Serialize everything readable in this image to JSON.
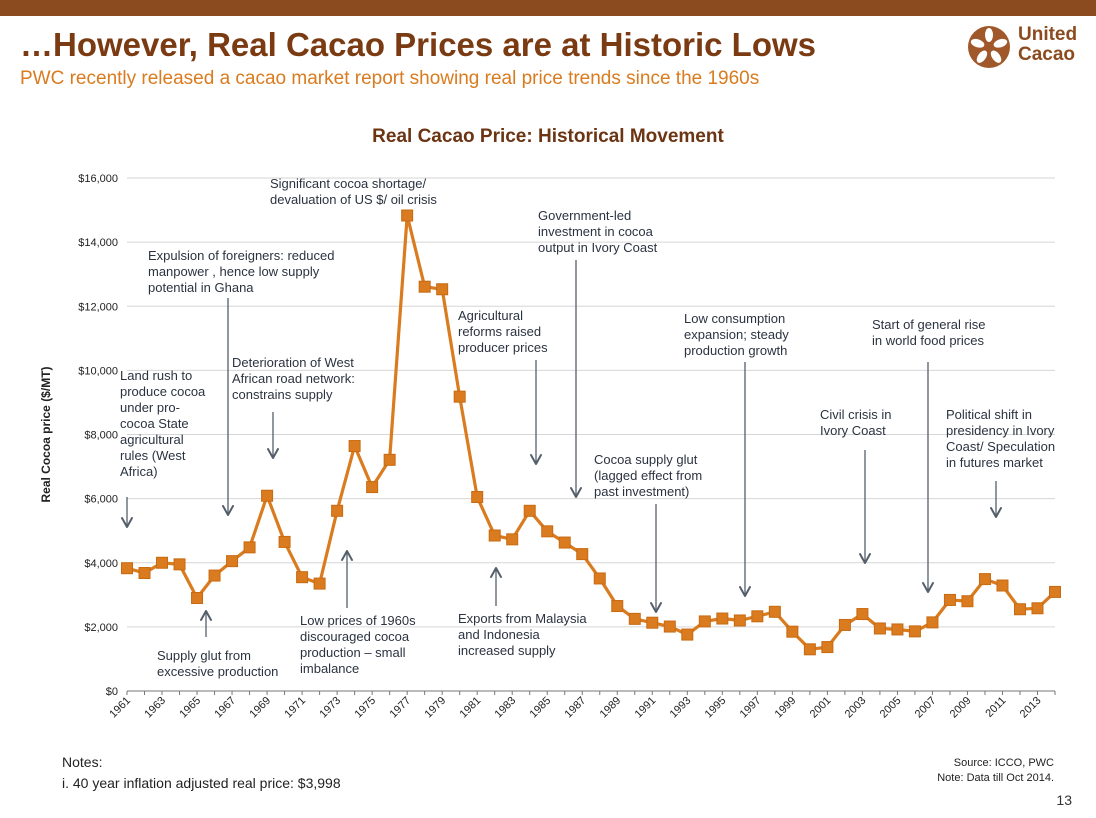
{
  "header": {
    "title": "…However, Real Cacao Prices are at Historic Lows",
    "subtitle": "PWC recently released a cacao market report showing real price trends since the 1960s"
  },
  "logo": {
    "line1": "United",
    "line2": "Cacao"
  },
  "colors": {
    "topbar": "#8b4b1f",
    "title": "#7a3a12",
    "subtitle": "#d97b1e",
    "series": "#d97b1e",
    "arrow": "#555f6b"
  },
  "chart_data": {
    "type": "line",
    "title": "Real Cacao Price: Historical Movement",
    "ylabel": "Real Cocoa price ($/MT)",
    "ylim": [
      0,
      16000
    ],
    "yticks": [
      "$0",
      "$2,000",
      "$4,000",
      "$6,000",
      "$8,000",
      "$10,000",
      "$12,000",
      "$14,000",
      "$16,000"
    ],
    "xticks": [
      "1961",
      "1963",
      "1965",
      "1967",
      "1969",
      "1971",
      "1973",
      "1975",
      "1977",
      "1979",
      "1981",
      "1983",
      "1985",
      "1987",
      "1989",
      "1991",
      "1993",
      "1995",
      "1997",
      "1999",
      "2001",
      "2003",
      "2005",
      "2007",
      "2009",
      "2011",
      "2013"
    ],
    "grid": true,
    "x": [
      1961,
      1962,
      1963,
      1964,
      1965,
      1966,
      1967,
      1968,
      1969,
      1970,
      1971,
      1972,
      1973,
      1974,
      1975,
      1976,
      1977,
      1978,
      1979,
      1980,
      1981,
      1982,
      1983,
      1984,
      1985,
      1986,
      1987,
      1988,
      1989,
      1990,
      1991,
      1992,
      1993,
      1994,
      1995,
      1996,
      1997,
      1998,
      1999,
      2000,
      2001,
      2002,
      2003,
      2004,
      2005,
      2006,
      2007,
      2008,
      2009,
      2010,
      2011,
      2012,
      2013,
      2014
    ],
    "values": [
      3830,
      3680,
      4000,
      3950,
      2900,
      3600,
      4050,
      4480,
      6090,
      4650,
      3550,
      3350,
      5620,
      7640,
      6360,
      7210,
      14830,
      12610,
      12530,
      9180,
      6050,
      4850,
      4730,
      5620,
      4980,
      4630,
      4270,
      3510,
      2650,
      2250,
      2130,
      2010,
      1760,
      2170,
      2260,
      2200,
      2330,
      2470,
      1850,
      1300,
      1370,
      2060,
      2400,
      1950,
      1920,
      1860,
      2140,
      2840,
      2800,
      3490,
      3290,
      2550,
      2580,
      3090
    ],
    "annotations": [
      {
        "text": [
          "Land rush to",
          "produce cocoa",
          "under pro-",
          "cocoa State",
          "agricultural",
          "rules (West",
          "Africa)"
        ]
      },
      {
        "text": [
          "Expulsion of foreigners: reduced",
          "manpower , hence low supply",
          "potential in Ghana"
        ]
      },
      {
        "text": [
          "Deterioration of West",
          "African road network:",
          "constrains supply"
        ]
      },
      {
        "text": [
          "Significant cocoa shortage/",
          "devaluation of US $/ oil crisis"
        ]
      },
      {
        "text": [
          "Agricultural",
          "reforms raised",
          "producer prices"
        ]
      },
      {
        "text": [
          "Government-led",
          "investment in cocoa",
          "output in Ivory Coast"
        ]
      },
      {
        "text": [
          "Cocoa supply glut",
          "(lagged effect from",
          "past investment)"
        ]
      },
      {
        "text": [
          "Low consumption",
          "expansion; steady",
          "production growth"
        ]
      },
      {
        "text": [
          "Start of general rise",
          "in world food prices"
        ]
      },
      {
        "text": [
          "Civil crisis in",
          "Ivory Coast"
        ]
      },
      {
        "text": [
          "Political shift in",
          "presidency in Ivory",
          "Coast/ Speculation",
          "in futures market"
        ]
      },
      {
        "text": [
          "Supply glut from",
          "excessive production"
        ]
      },
      {
        "text": [
          "Low prices of 1960s",
          "discouraged cocoa",
          "production – small",
          "imbalance"
        ]
      },
      {
        "text": [
          "Exports from Malaysia",
          "and Indonesia",
          "increased supply"
        ]
      }
    ]
  },
  "notes": {
    "heading": "Notes:",
    "items": [
      "i.   40 year inflation adjusted real price: $3,998"
    ]
  },
  "source": {
    "line1": "Source: ICCO, PWC",
    "line2": "Note: Data till Oct 2014."
  },
  "page_number": "13"
}
